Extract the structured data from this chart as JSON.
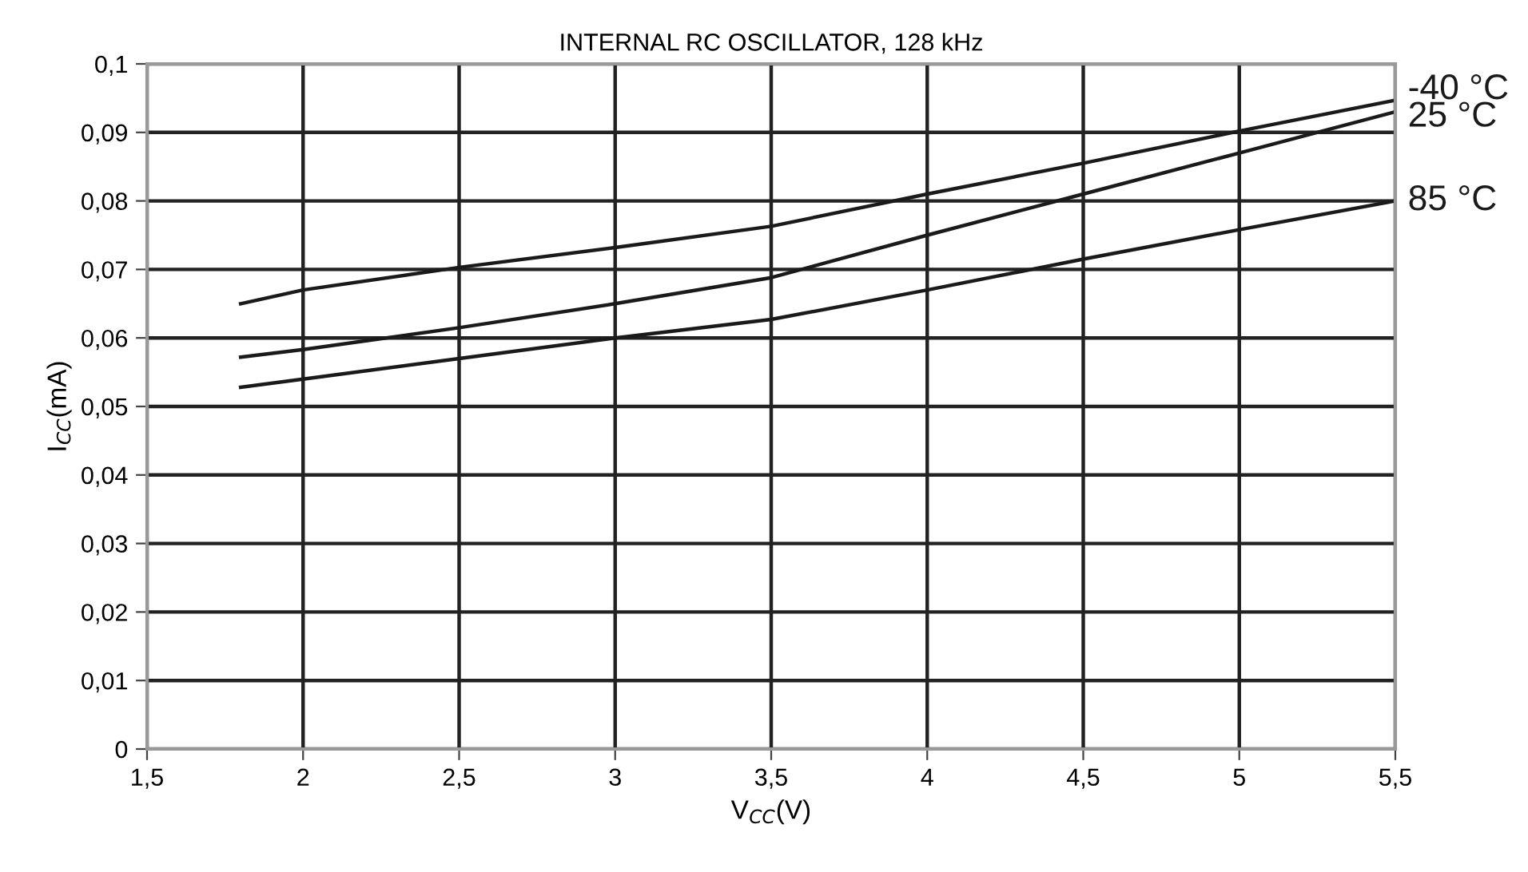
{
  "chart_data": {
    "type": "line",
    "title": "INTERNAL RC OSCILLATOR, 128 kHz",
    "xlabel": "V$_{CC}$(V)",
    "ylabel": "I$_{CC}$(mA)",
    "x": [
      1.8,
      2,
      2.5,
      3,
      3.5,
      4,
      4.5,
      5,
      5.5
    ],
    "series": [
      {
        "name": "-40 °C",
        "color": "#1a1a1a",
        "values": [
          0.065,
          0.067,
          0.0703,
          0.0732,
          0.0763,
          0.081,
          0.0855,
          0.0902,
          0.0947
        ]
      },
      {
        "name": "25 °C",
        "color": "#1a1a1a",
        "values": [
          0.0572,
          0.0583,
          0.0615,
          0.065,
          0.0688,
          0.075,
          0.081,
          0.087,
          0.093
        ]
      },
      {
        "name": "85 °C",
        "color": "#1a1a1a",
        "values": [
          0.0528,
          0.054,
          0.057,
          0.06,
          0.0627,
          0.067,
          0.0715,
          0.0758,
          0.08
        ]
      }
    ],
    "xlim": [
      1.5,
      5.5
    ],
    "xticks": [
      {
        "value": 1.5,
        "label": "1,5"
      },
      2,
      {
        "value": 2.5,
        "label": "2,5"
      },
      3,
      {
        "value": 3.5,
        "label": "3,5"
      },
      4,
      {
        "value": 4.5,
        "label": "4,5"
      },
      5,
      {
        "value": 5.5,
        "label": "5,5"
      }
    ],
    "ylim": [
      0,
      0.1
    ],
    "yticks": [
      0,
      {
        "value": 0.01,
        "label": "0,01"
      },
      {
        "value": 0.02,
        "label": "0,02"
      },
      {
        "value": 0.03,
        "label": "0,03"
      },
      {
        "value": 0.04,
        "label": "0,04"
      },
      {
        "value": 0.05,
        "label": "0,05"
      },
      {
        "value": 0.06,
        "label": "0,06"
      },
      {
        "value": 0.07,
        "label": "0,07"
      },
      {
        "value": 0.08,
        "label": "0,08"
      },
      {
        "value": 0.09,
        "label": "0,09"
      },
      {
        "value": 0.1,
        "label": "0,1"
      }
    ],
    "grid": true,
    "legend": false,
    "marker": "none",
    "line_style": "solid"
  }
}
